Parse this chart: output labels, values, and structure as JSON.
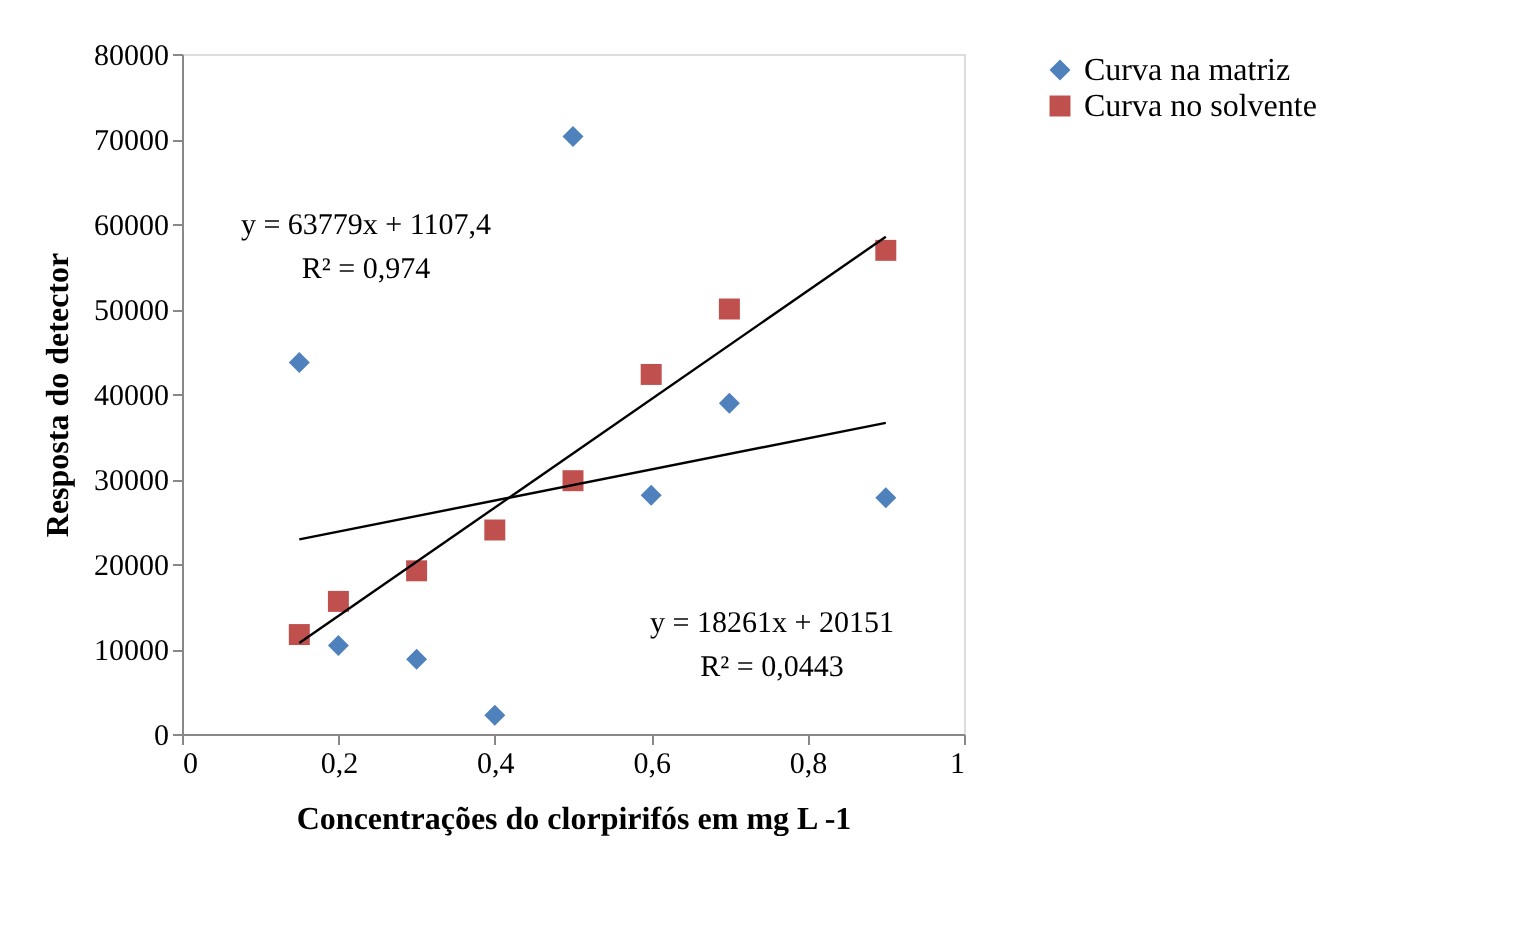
{
  "chart_data": {
    "type": "scatter",
    "xlabel": "Concentrações do clorpirifós em mg L -1",
    "ylabel": "Resposta do detector",
    "xlim": [
      0,
      1
    ],
    "ylim": [
      0,
      80000
    ],
    "xticks": [
      0,
      {
        "value": 0.2,
        "label": "0,2"
      },
      {
        "value": 0.4,
        "label": "0,4"
      },
      {
        "value": 0.6,
        "label": "0,6"
      },
      {
        "value": 0.8,
        "label": "0,8"
      },
      1
    ],
    "yticks": [
      0,
      10000,
      20000,
      30000,
      40000,
      50000,
      60000,
      70000,
      80000
    ],
    "grid": false,
    "legend": "right",
    "series": [
      {
        "name": "Curva na matriz",
        "color": "#4f81bd",
        "marker": "diamond",
        "x": [
          0.15,
          0.2,
          0.3,
          0.4,
          0.5,
          0.6,
          0.7,
          0.9
        ],
        "values": [
          43700,
          10400,
          8800,
          2200,
          70300,
          28100,
          38900,
          27800
        ]
      },
      {
        "name": "Curva no solvente",
        "color": "#c0504d",
        "marker": "square",
        "x": [
          0.15,
          0.2,
          0.3,
          0.4,
          0.5,
          0.6,
          0.7,
          0.9
        ],
        "values": [
          11700,
          15600,
          19200,
          24000,
          29800,
          42300,
          50000,
          56900
        ]
      },
      {
        "type": "line",
        "color": "#000000",
        "x": [
          0.15,
          0.9
        ],
        "values": [
          10700,
          58500
        ]
      },
      {
        "type": "line",
        "color": "#000000",
        "x": [
          0.15,
          0.9
        ],
        "values": [
          22900,
          36600
        ]
      }
    ],
    "annotations": [
      "y = 63779x + 1107,4",
      "R² = 0,974",
      "y = 18261x + 20151",
      "R² = 0,0443"
    ]
  }
}
